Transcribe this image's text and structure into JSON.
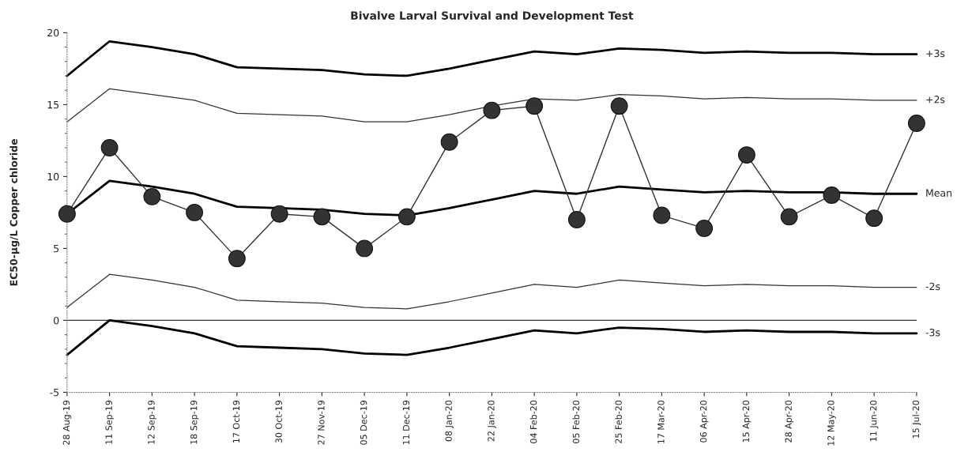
{
  "chart_data": {
    "type": "line",
    "title": "Bivalve Larval Survival and Development Test",
    "ylabel": "EC50-µg/L Copper chloride",
    "categories": [
      "28 Aug-19",
      "11 Sep-19",
      "12 Sep-19",
      "18 Sep-19",
      "17 Oct-19",
      "30 Oct-19",
      "27 Nov-19",
      "05 Dec-19",
      "11 Dec-19",
      "08 Jan-20",
      "22 Jan-20",
      "04 Feb-20",
      "05 Feb-20",
      "25 Feb-20",
      "17 Mar-20",
      "06 Apr-20",
      "15 Apr-20",
      "28 Apr-20",
      "12 May-20",
      "11 Jun-20",
      "15 Jul-20"
    ],
    "series": [
      {
        "name": "+3s",
        "color": "#000000",
        "values": [
          17.0,
          19.4,
          19.0,
          18.5,
          17.6,
          17.5,
          17.4,
          17.1,
          17.0,
          17.5,
          18.1,
          18.7,
          18.5,
          18.9,
          18.8,
          18.6,
          18.7,
          18.6,
          18.6,
          18.5,
          18.5
        ]
      },
      {
        "name": "+2s",
        "color": "#333333",
        "values": [
          13.8,
          16.1,
          15.7,
          15.3,
          14.4,
          14.3,
          14.2,
          13.8,
          13.8,
          14.3,
          14.9,
          15.4,
          15.3,
          15.7,
          15.6,
          15.4,
          15.5,
          15.4,
          15.4,
          15.3,
          15.3
        ]
      },
      {
        "name": "Mean",
        "color": "#000000",
        "values": [
          7.4,
          9.7,
          9.3,
          8.8,
          7.9,
          7.8,
          7.7,
          7.4,
          7.3,
          7.8,
          8.4,
          9.0,
          8.8,
          9.3,
          9.1,
          8.9,
          9.0,
          8.9,
          8.9,
          8.8,
          8.8
        ]
      },
      {
        "name": "-2s",
        "color": "#333333",
        "values": [
          0.9,
          3.2,
          2.8,
          2.3,
          1.4,
          1.3,
          1.2,
          0.9,
          0.8,
          1.3,
          1.9,
          2.5,
          2.3,
          2.8,
          2.6,
          2.4,
          2.5,
          2.4,
          2.4,
          2.3,
          2.3
        ]
      },
      {
        "name": "-3s",
        "color": "#000000",
        "values": [
          -2.4,
          0.0,
          -0.4,
          -0.9,
          -1.8,
          -1.9,
          -2.0,
          -2.3,
          -2.4,
          -1.9,
          -1.3,
          -0.7,
          -0.9,
          -0.5,
          -0.6,
          -0.8,
          -0.7,
          -0.8,
          -0.8,
          -0.9,
          -0.9
        ]
      },
      {
        "color": "#333333",
        "marker": "circle",
        "values": [
          7.4,
          12.0,
          8.6,
          7.5,
          4.3,
          7.4,
          7.2,
          5.0,
          7.2,
          12.4,
          14.6,
          14.9,
          7.0,
          14.9,
          7.3,
          6.4,
          11.5,
          7.2,
          8.7,
          7.1,
          13.7
        ]
      }
    ],
    "ref_lines": [
      {
        "axis": "y",
        "value": 0,
        "color": "#333333"
      }
    ],
    "ylim": [
      -5,
      20
    ],
    "yticks": [
      -5,
      0,
      5,
      10,
      15,
      20
    ],
    "grid": false,
    "legend": false
  }
}
